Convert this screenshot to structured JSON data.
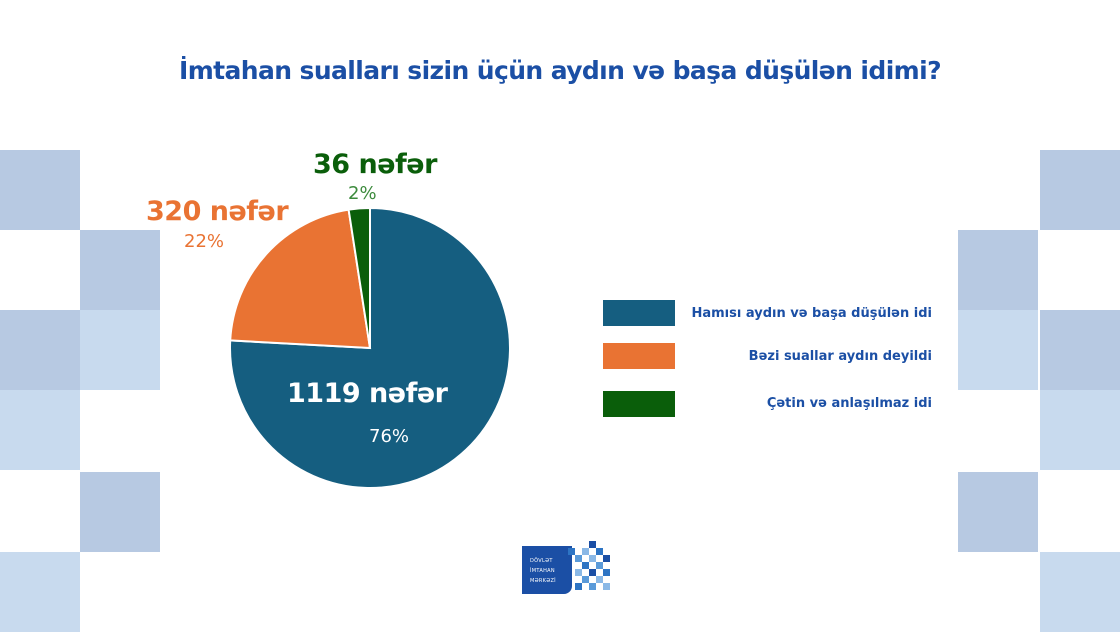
{
  "title": "İmtahan sualları sizin üçün aydın və başa düşülən idimi?",
  "chart_data": {
    "type": "pie",
    "slices": [
      {
        "name": "Hamısı aydın və başa düşülən idi",
        "count_label": "1119 nəfər",
        "value": 1119,
        "percent_label": "76%",
        "color": "#155e80"
      },
      {
        "name": "Bəzi suallar aydın deyildi",
        "count_label": "320 nəfər",
        "value": 320,
        "percent_label": "22%",
        "color": "#e97333"
      },
      {
        "name": "Çətin və anlaşılmaz idi",
        "count_label": "36 nəfər",
        "value": 36,
        "percent_label": "2%",
        "color": "#0a5e0a"
      }
    ],
    "legend_position": "right"
  },
  "logo": {
    "line1": "DÖVLƏT",
    "line2": "İMTAHAN",
    "line3": "MƏRKƏZİ"
  },
  "colors": {
    "title": "#1b4fa5",
    "deco_dark": "#b7c9e2",
    "deco_light": "#c8daee"
  }
}
